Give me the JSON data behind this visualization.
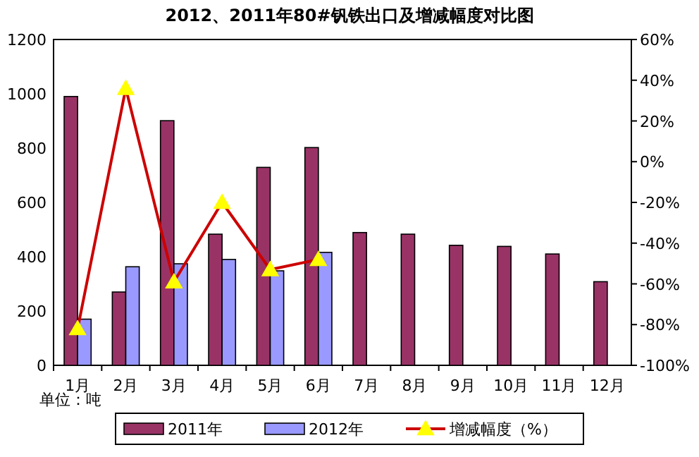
{
  "chart_data": {
    "type": "bar",
    "title": "2012、2011年80#钒铁出口及增减幅度对比图",
    "categories": [
      "1月",
      "2月",
      "3月",
      "4月",
      "5月",
      "6月",
      "7月",
      "8月",
      "9月",
      "10月",
      "11月",
      "12月"
    ],
    "series": [
      {
        "name": "2011年",
        "color": "#993366",
        "values": [
          990,
          270,
          901,
          483,
          729,
          802,
          489,
          483,
          442,
          438,
          410,
          308
        ]
      },
      {
        "name": "2012年",
        "color": "#9999ff",
        "values": [
          170,
          363,
          374,
          390,
          348,
          416,
          null,
          null,
          null,
          null,
          null,
          null
        ]
      },
      {
        "name": "增减幅度（%）",
        "type": "line",
        "axis": "y2",
        "color": "#cc0000",
        "marker": "triangle",
        "values": [
          -82,
          36,
          -59,
          -20,
          -53,
          -48,
          null,
          null,
          null,
          null,
          null,
          null
        ]
      }
    ],
    "ylim": [
      0,
      1200
    ],
    "yticks": [
      0,
      200,
      400,
      600,
      800,
      1000,
      1200
    ],
    "y2lim": [
      -100,
      60
    ],
    "y2ticks": [
      {
        "value": -100,
        "label": "-100%"
      },
      {
        "value": -80,
        "label": "-80%"
      },
      {
        "value": -60,
        "label": "-60%"
      },
      {
        "value": -40,
        "label": "-40%"
      },
      {
        "value": -20,
        "label": "-20%"
      },
      {
        "value": 0,
        "label": "0%"
      },
      {
        "value": 20,
        "label": "20%"
      },
      {
        "value": 40,
        "label": "40%"
      },
      {
        "value": 60,
        "label": "60%"
      }
    ],
    "annotations": [
      "单位：吨"
    ],
    "legend": "bottom",
    "grid": false
  }
}
